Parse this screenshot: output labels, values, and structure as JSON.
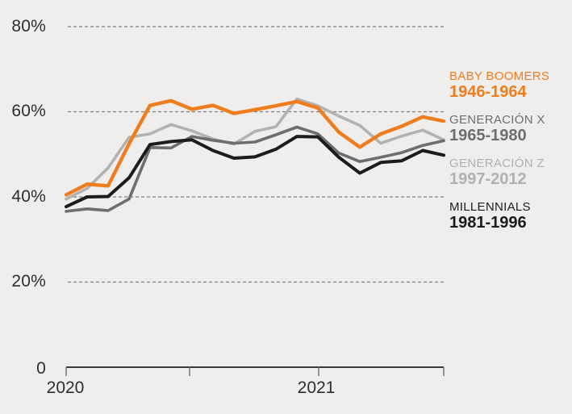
{
  "background_color": "#EFEEED",
  "text_color": "#2D2D2D",
  "chart_data": {
    "type": "line",
    "title": "",
    "unit": "%",
    "y_axis": {
      "tick_labels": [
        "80%",
        "60%",
        "40%",
        "20%",
        "0"
      ],
      "min": 0,
      "max": 80,
      "gridline_values": [
        80,
        60,
        40,
        20
      ],
      "grid_style": "dashed",
      "grid_color": "#7E7E7E",
      "label_color": "#2D2D2D"
    },
    "x_axis": {
      "tick_labels": [
        "2020",
        "2021"
      ],
      "tick_count": 4,
      "axis_color": "#3A3A3A",
      "tick_color": "#6E6E6E"
    },
    "series": [
      {
        "id": "generacion-z",
        "name": "GENERACIÓN Z",
        "period": "1997-2012",
        "color": "#B3B2B0",
        "stroke_width": 3.6,
        "values": [
          39.5,
          42.0,
          46.8,
          54.0,
          54.8,
          57.0,
          55.5,
          53.6,
          52.4,
          55.4,
          56.5,
          63.0,
          61.4,
          59.0,
          56.8,
          52.6,
          54.3,
          55.7,
          53.4
        ]
      },
      {
        "id": "generacion-x",
        "name": "GENERACIÓN X",
        "period": "1965-1980",
        "color": "#6E6E6E",
        "stroke_width": 3.6,
        "values": [
          36.6,
          37.2,
          36.8,
          39.5,
          51.6,
          51.5,
          54.2,
          53.3,
          52.6,
          52.9,
          54.6,
          56.4,
          54.8,
          50.3,
          48.3,
          49.3,
          50.4,
          52.1,
          53.2
        ]
      },
      {
        "id": "millennials",
        "name": "MILLENNIALS",
        "period": "1981-1996",
        "color": "#1C1C1C",
        "stroke_width": 4,
        "values": [
          37.7,
          40.0,
          40.1,
          44.5,
          52.3,
          53.0,
          53.4,
          50.9,
          49.1,
          49.4,
          51.2,
          54.2,
          54.1,
          49.3,
          45.6,
          48.1,
          48.5,
          50.9,
          49.8
        ]
      },
      {
        "id": "baby-boomers",
        "name": "BABY BOOMERS",
        "period": "1946-1964",
        "color": "#EF7D1E",
        "stroke_width": 4.4,
        "values": [
          40.5,
          43.0,
          42.6,
          52.5,
          61.5,
          62.6,
          60.6,
          61.5,
          59.6,
          60.5,
          61.4,
          62.4,
          60.9,
          55.2,
          51.7,
          54.8,
          56.6,
          58.8,
          57.8
        ]
      }
    ],
    "legend": {
      "position": "right",
      "items": [
        {
          "label": "BABY BOOMERS",
          "period": "1946-1964",
          "color": "#EF7D1E"
        },
        {
          "label": "GENERACIÓN X",
          "period": "1965-1980",
          "color": "#6E6E6E"
        },
        {
          "label": "GENERACIÓN Z",
          "period": "1997-2012",
          "color": "#B1B0AE"
        },
        {
          "label": "MILLENNIALS",
          "period": "1981-1996",
          "color": "#1C1C1C"
        }
      ]
    }
  }
}
